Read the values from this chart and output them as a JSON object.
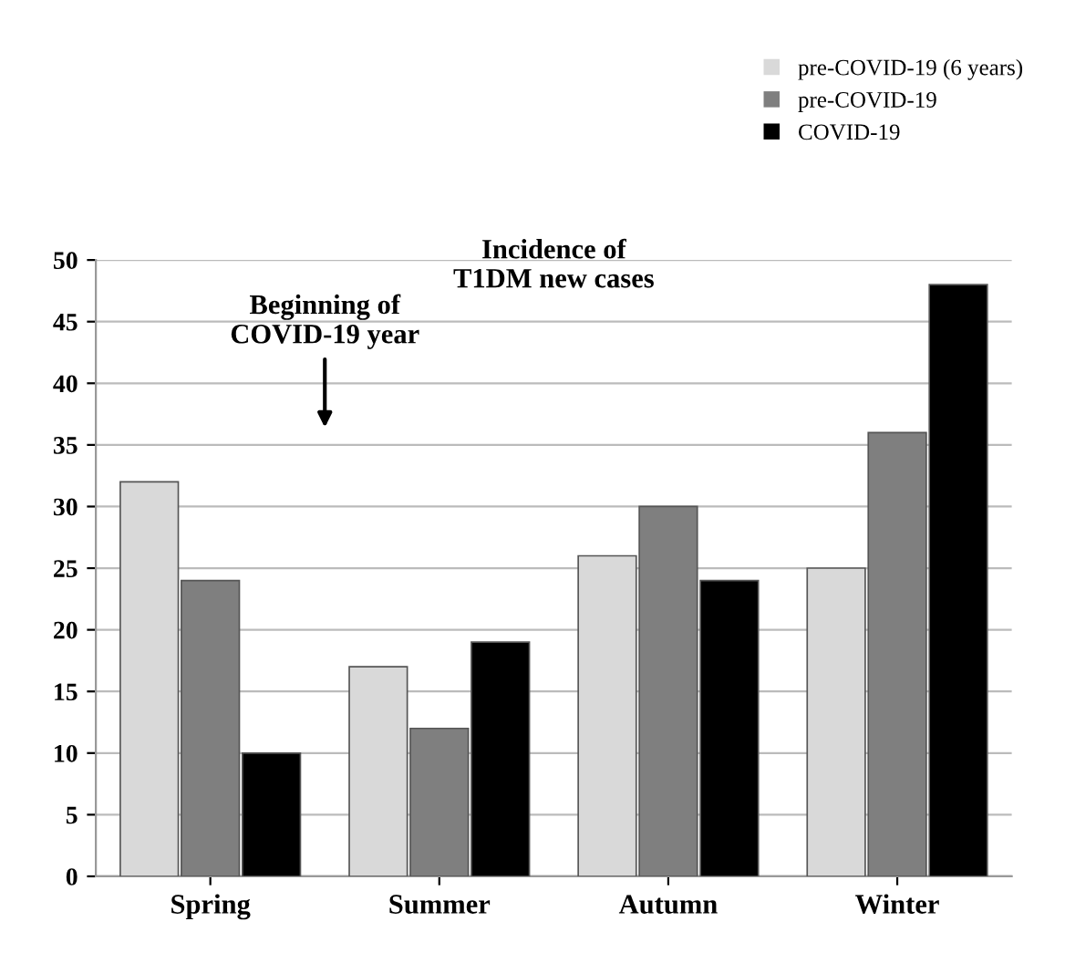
{
  "chart_data": {
    "type": "bar",
    "categories": [
      "Spring",
      "Summer",
      "Autumn",
      "Winter"
    ],
    "series": [
      {
        "name": "pre-COVID-19 (6 years)",
        "color": "#d9d9d9",
        "values": [
          32,
          17,
          26,
          25
        ]
      },
      {
        "name": "pre-COVID-19",
        "color": "#7f7f7f",
        "values": [
          24,
          12,
          30,
          36
        ]
      },
      {
        "name": "COVID-19",
        "color": "#000000",
        "values": [
          10,
          19,
          24,
          48
        ]
      }
    ],
    "ylim": [
      0,
      50
    ],
    "yticks": [
      0,
      5,
      10,
      15,
      20,
      25,
      30,
      35,
      40,
      45,
      50
    ],
    "grid": "y",
    "legend": "top right",
    "annotations": [
      "Incidence of\nT1DM new cases",
      "Beginning of\nCOVID-19 year"
    ]
  }
}
